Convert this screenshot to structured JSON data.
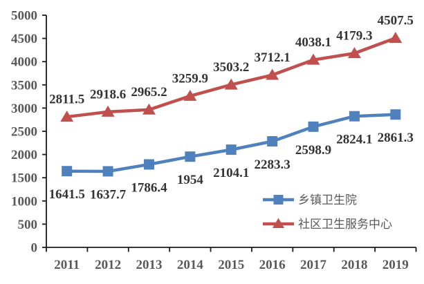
{
  "chart_data": {
    "type": "line",
    "title": "",
    "xlabel": "",
    "ylabel": "",
    "categories": [
      "2011",
      "2012",
      "2013",
      "2014",
      "2015",
      "2016",
      "2017",
      "2018",
      "2019"
    ],
    "series": [
      {
        "name": "乡镇卫生院",
        "values": [
          1641.5,
          1637.7,
          1786.4,
          1954,
          2104.1,
          2283.3,
          2598.9,
          2824.1,
          2861.3
        ],
        "labels": [
          "1641.5",
          "1637.7",
          "1786.4",
          "1954",
          "2104.1",
          "2283.3",
          "2598.9",
          "2824.1",
          "2861.3"
        ],
        "color": "#4F81BD",
        "marker": "square",
        "data_label_position": "below"
      },
      {
        "name": "社区卫生服务中心",
        "values": [
          2811.5,
          2918.6,
          2965.2,
          3259.9,
          3503.2,
          3712.1,
          4038.1,
          4179.3,
          4507.5
        ],
        "labels": [
          "2811.5",
          "2918.6",
          "2965.2",
          "3259.9",
          "3503.2",
          "3712.1",
          "4038.1",
          "4179.3",
          "4507.5"
        ],
        "color": "#C0504D",
        "marker": "triangle",
        "data_label_position": "above"
      }
    ],
    "ylim": [
      0,
      5000
    ],
    "ytick_step": 500,
    "ytick_labels": [
      "0",
      "500",
      "1000",
      "1500",
      "2000",
      "2500",
      "3000",
      "3500",
      "4000",
      "4500",
      "5000"
    ],
    "grid": false,
    "legend_position": "inside-bottom-right",
    "colors": {
      "axis": "#1a1a1a",
      "tick_label": "#595959",
      "data_label": "#333333",
      "legend_text": "#595959",
      "background": "#ffffff"
    }
  }
}
